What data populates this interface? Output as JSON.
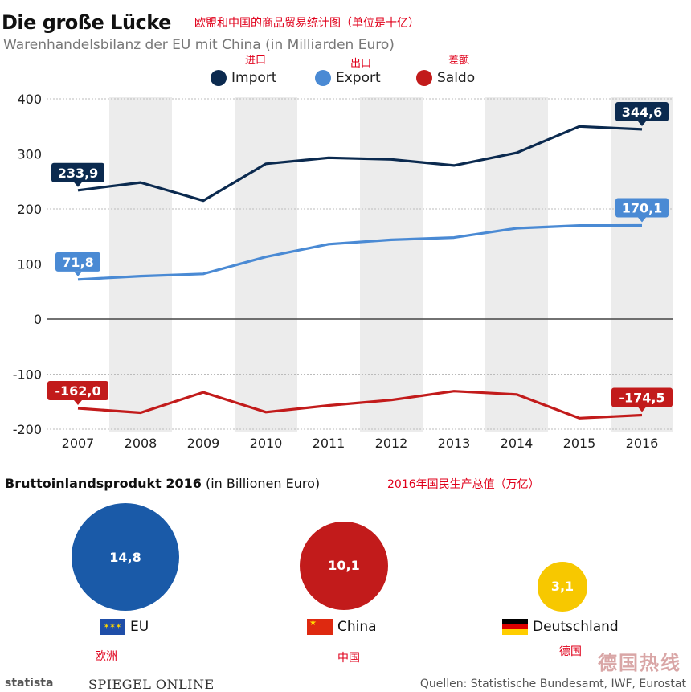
{
  "header": {
    "title": "Die große Lücke",
    "title_cn": "欧盟和中国的商品贸易统计图（单位是十亿）",
    "subtitle": "Warenhandelsbilanz der EU mit China (in Milliarden Euro)"
  },
  "legend": {
    "import": {
      "label": "Import",
      "cn": "进口"
    },
    "export": {
      "label": "Export",
      "cn": "出口"
    },
    "saldo": {
      "label": "Saldo",
      "cn": "差额"
    }
  },
  "chart_data": {
    "type": "line",
    "title": "Die große Lücke",
    "subtitle": "Warenhandelsbilanz der EU mit China (in Milliarden Euro)",
    "x": [
      "2007",
      "2008",
      "2009",
      "2010",
      "2011",
      "2012",
      "2013",
      "2014",
      "2015",
      "2016"
    ],
    "yticks": [
      "400",
      "300",
      "200",
      "100",
      "0",
      "-100",
      "-200"
    ],
    "ylim": [
      -200,
      400
    ],
    "grid": "horizontal",
    "legend_position": "top",
    "series": [
      {
        "name": "Import",
        "color": "#0b2a4f",
        "values": [
          233.9,
          248,
          215,
          282,
          293,
          290,
          279,
          302,
          350,
          344.6
        ],
        "labels": {
          "start": "233,9",
          "end": "344,6"
        }
      },
      {
        "name": "Export",
        "color": "#4a8ad4",
        "values": [
          71.8,
          78,
          82,
          113,
          136,
          144,
          148,
          165,
          170,
          170.1
        ],
        "labels": {
          "start": "71,8",
          "end": "170,1"
        }
      },
      {
        "name": "Saldo",
        "color": "#c21b1b",
        "values": [
          -162.0,
          -170,
          -133,
          -169,
          -157,
          -147,
          -131,
          -137,
          -180,
          -174.5
        ],
        "labels": {
          "start": "-162,0",
          "end": "-174,5"
        }
      }
    ]
  },
  "gdp": {
    "title_bold": "Bruttoinlandsprodukt 2016",
    "title_rest": "(in Billionen Euro)",
    "title_cn": "2016年国民生产总值（万亿）",
    "items": [
      {
        "name": "EU",
        "value": 14.8,
        "label": "14,8",
        "color": "#1a5aa8",
        "cn": "欧洲"
      },
      {
        "name": "China",
        "value": 10.1,
        "label": "10,1",
        "color": "#c21b1b",
        "cn": "中国"
      },
      {
        "name": "Deutschland",
        "value": 3.1,
        "label": "3,1",
        "color": "#f7c800",
        "cn": "德国"
      }
    ]
  },
  "footer": {
    "brand": "statista",
    "publisher": "SPIEGEL ONLINE",
    "sources": "Quellen: Statistische Bundesamt, IWF, Eurostat",
    "watermark": "德国热线"
  }
}
